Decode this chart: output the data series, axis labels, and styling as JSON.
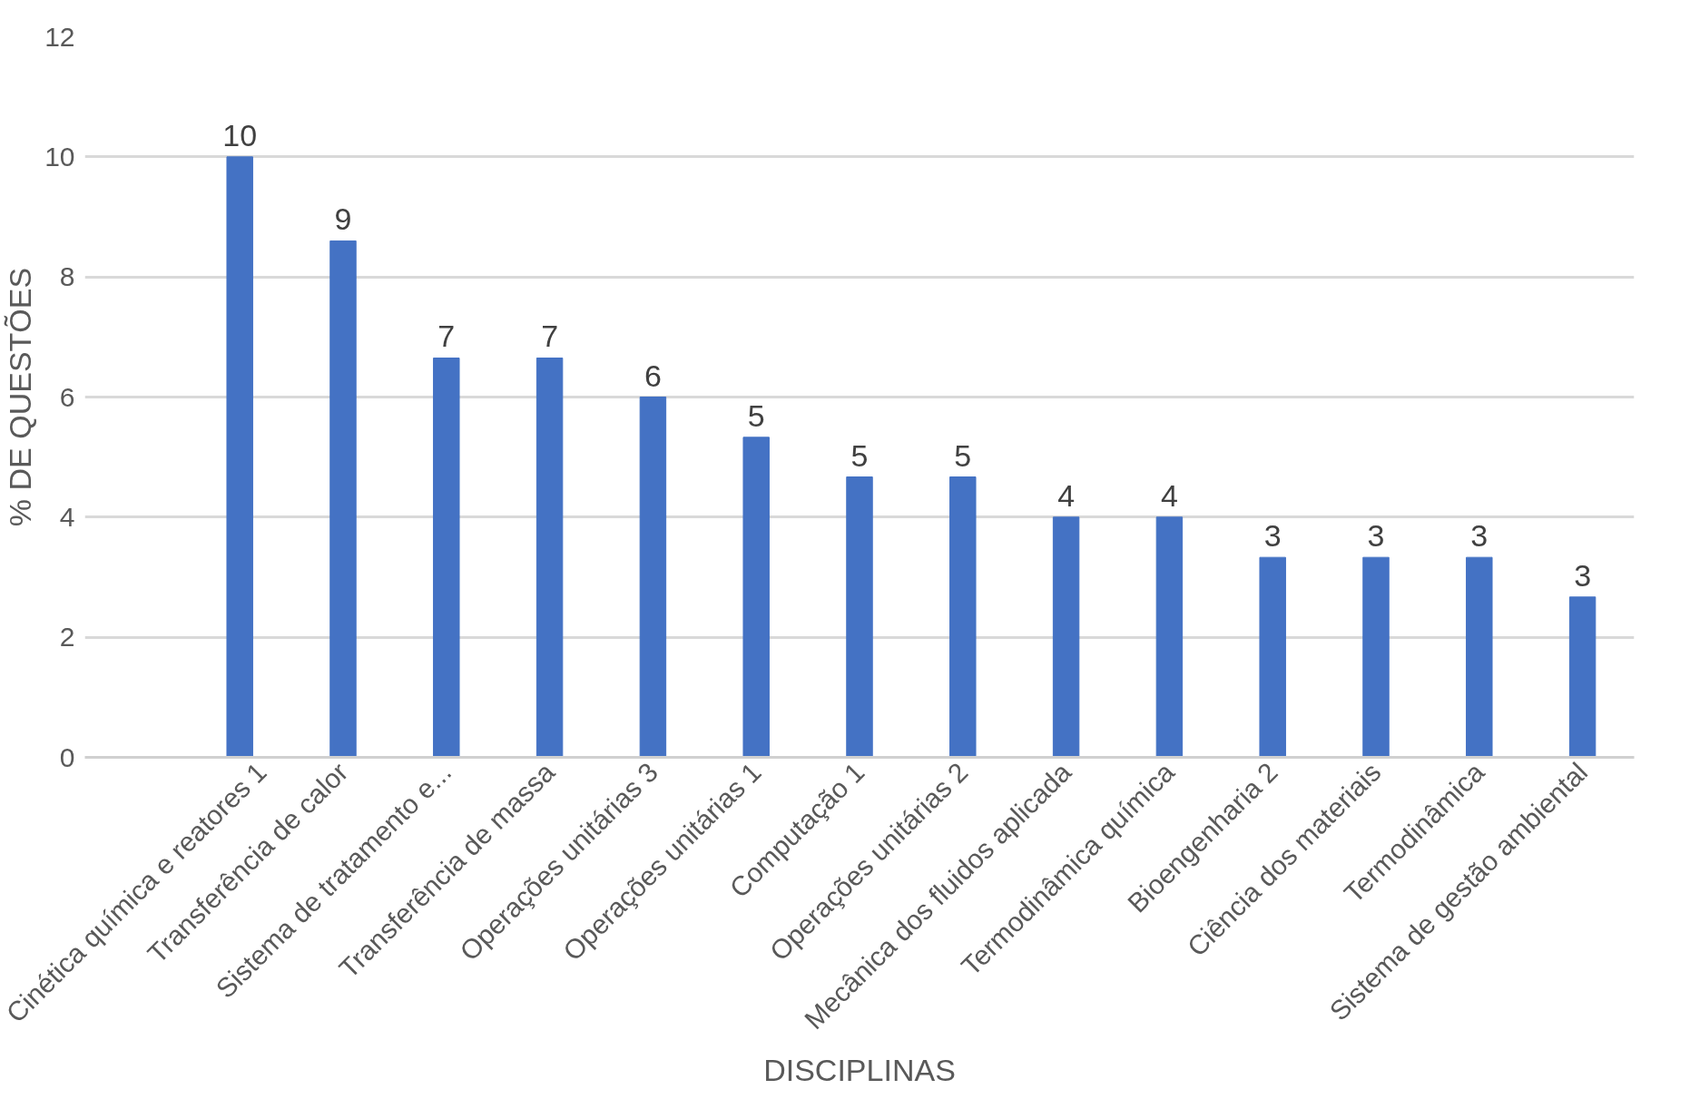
{
  "chart_data": {
    "type": "bar",
    "xlabel": "DISCIPLINAS",
    "ylabel": "% DE QUESTÕES",
    "categories": [
      "Cinética química e reatores 1",
      "Transferência de calor",
      "Sistema de tratamento e...",
      "Transferência de massa",
      "Operações unitárias 3",
      "Operações unitárias 1",
      "Computação 1",
      "Operações unitárias 2",
      "Mecânica dos fluidos aplicada",
      "Termodinâmica química",
      "Bioengenharia 2",
      "Ciência dos materiais",
      "Termodinâmica",
      "Sistema de gestão ambiental"
    ],
    "values": [
      10,
      8.6,
      6.65,
      6.65,
      6.0,
      5.33,
      4.67,
      4.67,
      4.0,
      4.0,
      3.33,
      3.33,
      3.33,
      2.67
    ],
    "value_labels": [
      "10",
      "9",
      "7",
      "7",
      "6",
      "5",
      "5",
      "5",
      "4",
      "4",
      "3",
      "3",
      "3",
      "3"
    ],
    "color": "#4472c4",
    "ylim": [
      0,
      12
    ],
    "yticks": [
      0,
      2,
      4,
      6,
      8,
      10,
      12
    ],
    "grid": "y"
  }
}
